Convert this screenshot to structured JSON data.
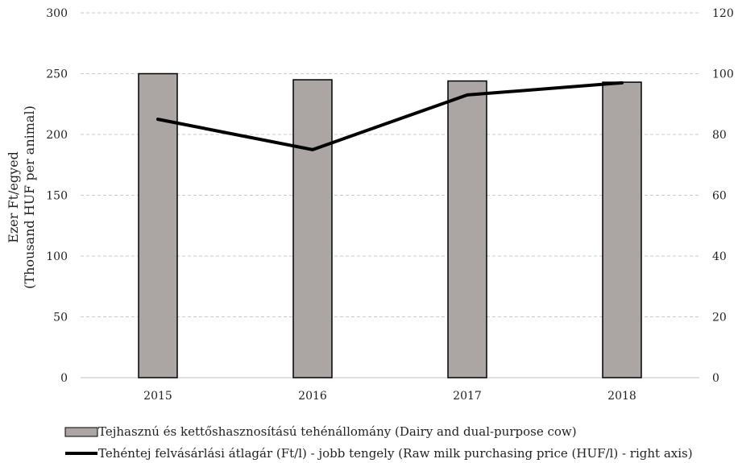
{
  "chart_data": {
    "type": "bar",
    "categories": [
      "2015",
      "2016",
      "2017",
      "2018"
    ],
    "series": [
      {
        "name": "Tejhasznú és kettőshasznosítású tehénállomány (Dairy and dual-purpose cow)",
        "type": "bar",
        "axis": "left",
        "values": [
          250,
          245,
          244,
          243
        ],
        "color": "#aba5a3"
      },
      {
        "name": "Tehéntej felvásárlási átlagár (Ft/l) - jobb tengely (Raw milk purchasing price (HUF/l) - right axis)",
        "type": "line",
        "axis": "right",
        "values": [
          85,
          75,
          93,
          97
        ],
        "color": "#000000"
      }
    ],
    "ylabel_line1": "Ezer Ft/egyed",
    "ylabel_line2": "(Thousand HUF per animal)",
    "ylim": [
      0,
      300
    ],
    "y_ticks": [
      "0",
      "50",
      "100",
      "150",
      "200",
      "250",
      "300"
    ],
    "y2lim": [
      0,
      120
    ],
    "y2_ticks": [
      "0",
      "20",
      "40",
      "60",
      "80",
      "100",
      "120"
    ],
    "grid": "horizontal dashed",
    "legend_position": "bottom"
  }
}
